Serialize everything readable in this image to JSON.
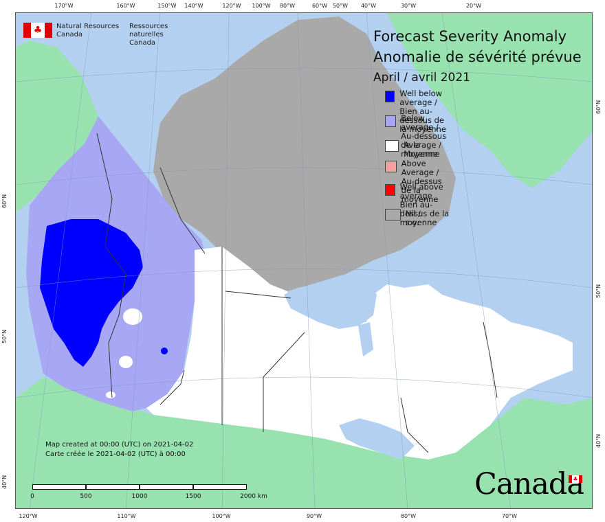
{
  "map": {
    "agency": {
      "en": "Natural Resources\nCanada",
      "fr": "Ressources naturelles\nCanada"
    },
    "title_en": "Forecast Severity Anomaly",
    "title_fr": "Anomalie de sévérité prévue",
    "period": "April / avril 2021",
    "legend": [
      {
        "label": "Well below average /\nBien au-dessous de la moyenne",
        "color": "#0000ff"
      },
      {
        "label": "Below average /\nAu-dessous de la moyenne",
        "color": "#a7a7f4"
      },
      {
        "label": "Average / Moyenne",
        "color": "#ffffff"
      },
      {
        "label": "Above Average /\nAu-dessus de la moyenne",
        "color": "#f5a0a0"
      },
      {
        "label": "Well above average\nBien au-dessus de la moyenne",
        "color": "#ff0000"
      },
      {
        "label": "Nil / s.o.",
        "color": "#a9a9a9"
      }
    ],
    "credit_en": "Map created at 00:00 (UTC) on 2021-04-02",
    "credit_fr": "Carte créée le 2021-04-02 (UTC) à 00:00",
    "scale_labels": [
      "0",
      "500",
      "1000",
      "1500",
      "2000  km"
    ],
    "wordmark": "Canada",
    "graticule_top": [
      "170°W",
      "160°W",
      "150°W",
      "140°W",
      "120°W",
      "100°W",
      "80°W",
      "60°W",
      "50°W",
      "40°W",
      "30°W",
      "20°W"
    ],
    "graticule_bottom": [
      "120°W",
      "110°W",
      "100°W",
      "90°W",
      "80°W",
      "70°W"
    ],
    "graticule_left": [
      "60°N",
      "50°N",
      "40°N"
    ],
    "graticule_right": [
      "60°N",
      "50°N",
      "40°N"
    ],
    "colors": {
      "ocean": "#b3d0f0",
      "land_other": "#98e2af",
      "nil": "#a9a9a9",
      "well_below": "#0000ff",
      "below": "#a7a7f4",
      "average": "#ffffff",
      "lake": "#b3d0f0"
    }
  }
}
